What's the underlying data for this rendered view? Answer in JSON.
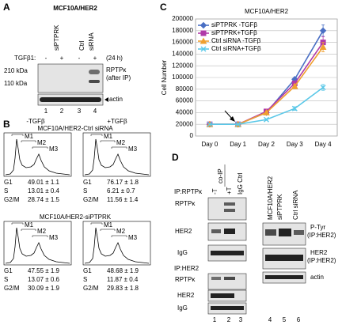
{
  "panel_a": {
    "letter": "A",
    "title": "MCF10A/HER2",
    "lanes": [
      "siPTPRK",
      "Ctrl",
      "siRNA"
    ],
    "treatment": "TGFβ1:",
    "signs": [
      "-",
      "+",
      "-",
      "+"
    ],
    "time": "(24 h)",
    "markers": [
      "210 kDa",
      "110 kDa"
    ],
    "bands": [
      "RPTPκ",
      "(after IP)",
      "actin"
    ],
    "lane_numbers": [
      "1",
      "2",
      "3",
      "4"
    ]
  },
  "panel_b": {
    "letter": "B",
    "conditions": [
      "-TGFβ",
      "+TGFβ"
    ],
    "gates": [
      "M1",
      "M2",
      "M3"
    ],
    "phases": [
      "G1",
      "S",
      "G2/M"
    ],
    "groups": [
      {
        "title": "MCF10A/HER2-Ctrl siRNA",
        "stats": [
          [
            "49.01 ± 1.1",
            "13.01 ± 0.4",
            "28.74 ± 1.5"
          ],
          [
            "76.17 ± 1.8",
            "6.21 ± 0.7",
            "11.56 ± 1.4"
          ]
        ]
      },
      {
        "title": "MCF10A/HER2-siPTPRK",
        "stats": [
          [
            "47.55 ± 1.9",
            "13.07 ± 0.6",
            "30.09 ± 1.9"
          ],
          [
            "48.68 ± 1.9",
            "11.87 ± 0.4",
            "29.83 ± 1.8"
          ]
        ]
      }
    ]
  },
  "chart_data": {
    "type": "line",
    "letter": "C",
    "title": "MCF10A/HER2",
    "y_label": "Cell Number",
    "categories": [
      "Day 0",
      "Day 1",
      "Day 2",
      "Day 3",
      "Day 4"
    ],
    "ylim": [
      0,
      200000
    ],
    "yticks": [
      0,
      20000,
      40000,
      60000,
      80000,
      100000,
      120000,
      140000,
      160000,
      180000,
      200000
    ],
    "grid": true,
    "legend": "top-left",
    "series": [
      {
        "name": "siPTPRK -TGFβ",
        "color": "#4a6fc4",
        "marker": "diamond",
        "values": [
          20000,
          20000,
          40000,
          97000,
          180000
        ],
        "errors": [
          0,
          0,
          1500,
          3000,
          10000
        ]
      },
      {
        "name": "siPTPRK+TGFβ",
        "color": "#b03aa8",
        "marker": "square",
        "values": [
          20000,
          20000,
          42000,
          90000,
          160000
        ],
        "errors": [
          0,
          0,
          1500,
          3000,
          10000
        ]
      },
      {
        "name": "Ctrl siRNA -TGFβ",
        "color": "#f0a030",
        "marker": "triangle",
        "values": [
          20000,
          20000,
          40000,
          85000,
          152000
        ],
        "errors": [
          0,
          0,
          1500,
          3000,
          8000
        ]
      },
      {
        "name": "Ctrl siRNA+TGFβ",
        "color": "#5bc8e8",
        "marker": "x",
        "values": [
          20000,
          20000,
          28000,
          47000,
          83000
        ],
        "errors": [
          0,
          0,
          1500,
          3000,
          5000
        ]
      }
    ]
  },
  "panel_d": {
    "letter": "D",
    "co_ip": "co-IP",
    "lanes_left": [
      "-T",
      "+T",
      "IgG Ctrl"
    ],
    "ip_rptpk": "IP:RPTPκ",
    "ip_her2": "IP:HER2",
    "bands_left": [
      "RPTPκ",
      "HER2",
      "IgG"
    ],
    "lanes_right": [
      "MCF10A/HER2",
      "siPTPRK",
      "Ctrl siRNA"
    ],
    "bands_right": [
      "P-Tyr",
      "(IP:HER2)",
      "HER2",
      "(IP:HER2)",
      "actin"
    ],
    "lane_numbers": [
      "1",
      "2",
      "3",
      "4",
      "5",
      "6"
    ]
  }
}
